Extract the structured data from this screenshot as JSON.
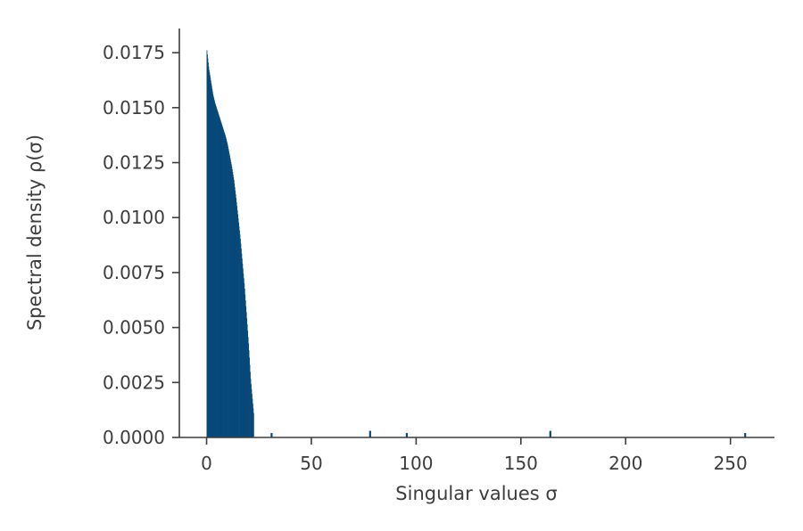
{
  "chart_data": {
    "type": "bar",
    "title": "",
    "xlabel": "Singular values σ",
    "ylabel": "Spectral density ρ(σ)",
    "xlim": [
      -13,
      271
    ],
    "ylim": [
      0,
      0.0186
    ],
    "xticks": [
      {
        "value": 0,
        "label": "0"
      },
      {
        "value": 50,
        "label": "50"
      },
      {
        "value": 100,
        "label": "100"
      },
      {
        "value": 150,
        "label": "150"
      },
      {
        "value": 200,
        "label": "200"
      },
      {
        "value": 250,
        "label": "250"
      }
    ],
    "yticks": [
      {
        "value": 0,
        "label": "0.0000"
      },
      {
        "value": 0.0025,
        "label": "0.0025"
      },
      {
        "value": 0.005,
        "label": "0.0050"
      },
      {
        "value": 0.0075,
        "label": "0.0075"
      },
      {
        "value": 0.01,
        "label": "0.0100"
      },
      {
        "value": 0.0125,
        "label": "0.0125"
      },
      {
        "value": 0.015,
        "label": "0.0150"
      },
      {
        "value": 0.0175,
        "label": "0.0175"
      }
    ],
    "grid": false,
    "color": "#08497a",
    "bulk": {
      "x": [
        0,
        1,
        2,
        3,
        4,
        5,
        6,
        7,
        8,
        9,
        10,
        11,
        12,
        13,
        14,
        15,
        16,
        17,
        18,
        19,
        20,
        21,
        22.5
      ],
      "y": [
        0.0177,
        0.0168,
        0.0162,
        0.0156,
        0.0152,
        0.0149,
        0.0146,
        0.0143,
        0.014,
        0.0137,
        0.0133,
        0.0128,
        0.0123,
        0.0117,
        0.0109,
        0.01,
        0.0091,
        0.008,
        0.0069,
        0.0056,
        0.0042,
        0.0026,
        0.001
      ]
    },
    "outliers": [
      {
        "x": 31,
        "y": 0.0002
      },
      {
        "x": 78,
        "y": 0.0003
      },
      {
        "x": 95.5,
        "y": 0.0002
      },
      {
        "x": 164,
        "y": 0.0003
      },
      {
        "x": 257,
        "y": 0.0002
      }
    ]
  }
}
